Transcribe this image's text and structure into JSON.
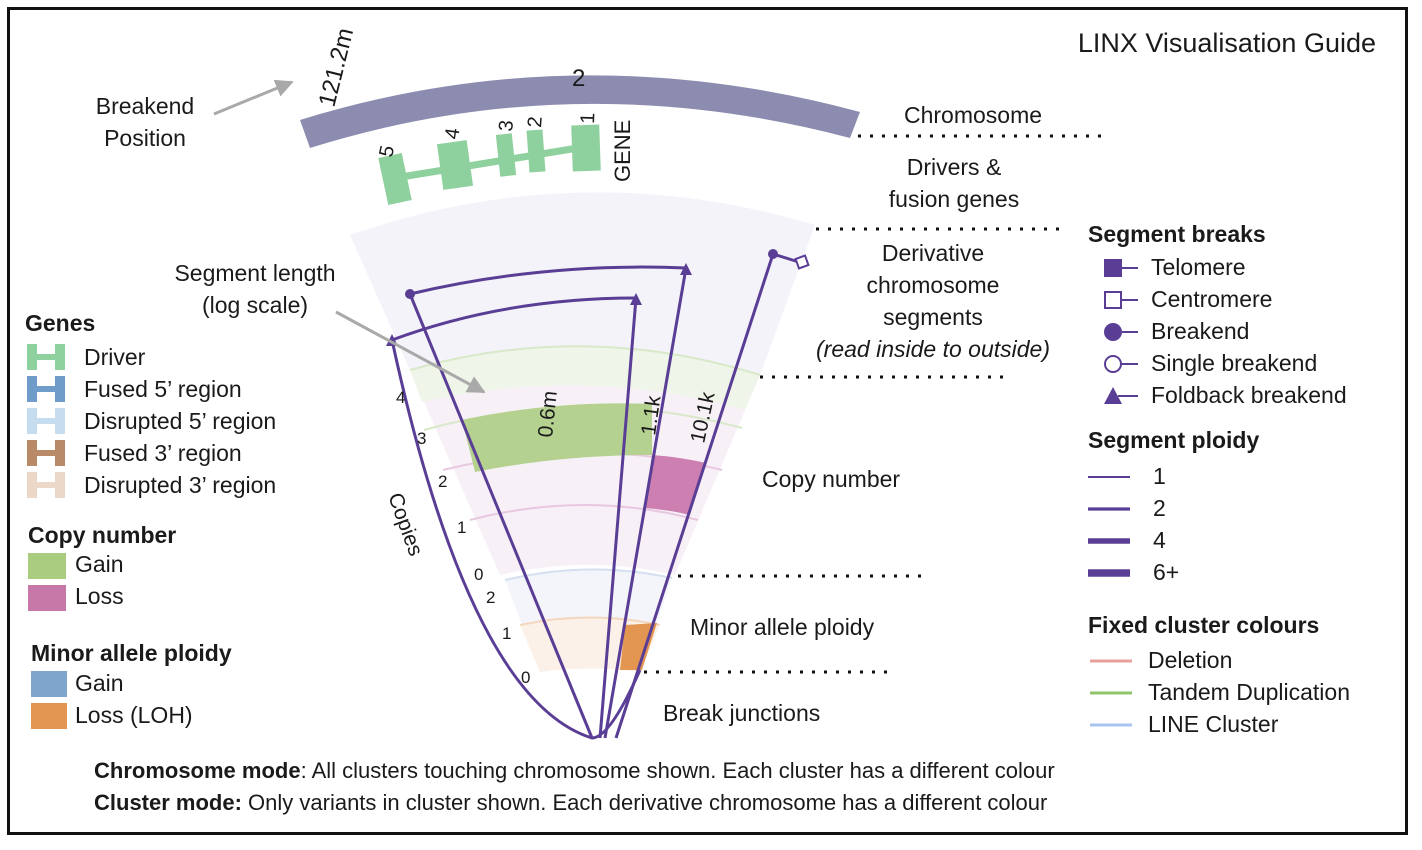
{
  "title": "LINX Visualisation Guide",
  "diagram": {
    "chromosome_number": "2",
    "breakend_position_value": "121.2m",
    "gene_label": "GENE",
    "exon_numbers": [
      "5",
      "4",
      "3",
      "2",
      "1"
    ],
    "segment_length_values": [
      "0.6m",
      "1.1k",
      "10.1k"
    ],
    "copies_axis_label": "Copies",
    "copy_number_ticks": [
      "4",
      "3",
      "2",
      "1",
      "0"
    ],
    "minor_allele_ticks": [
      "2",
      "1",
      "0"
    ]
  },
  "annotations": {
    "breakend_position": [
      "Breakend",
      "Position"
    ],
    "segment_length": [
      "Segment length",
      "(log scale)"
    ],
    "chromosome": "Chromosome",
    "drivers_fusion": [
      "Drivers &",
      "fusion genes"
    ],
    "derivative": [
      "Derivative",
      "chromosome",
      "segments"
    ],
    "derivative_note": "(read inside to outside)",
    "copy_number": "Copy number",
    "minor_allele_ploidy": "Minor allele ploidy",
    "break_junctions": "Break junctions"
  },
  "legend_left": {
    "genes": {
      "header": "Genes",
      "items": [
        {
          "label": "Driver",
          "color": "#8fd19e"
        },
        {
          "label": "Fused 5’ region",
          "color": "#6f9cc8"
        },
        {
          "label": "Disrupted 5’ region",
          "color": "#c6dcef"
        },
        {
          "label": "Fused 3’ region",
          "color": "#b98a68"
        },
        {
          "label": "Disrupted 3’ region",
          "color": "#ecd8c8"
        }
      ]
    },
    "copy_number": {
      "header": "Copy number",
      "items": [
        {
          "label": "Gain",
          "color": "#a9cc7e"
        },
        {
          "label": "Loss",
          "color": "#c878a8"
        }
      ]
    },
    "minor_allele_ploidy": {
      "header": "Minor allele ploidy",
      "items": [
        {
          "label": "Gain",
          "color": "#7ea6cc"
        },
        {
          "label": "Loss (LOH)",
          "color": "#e39552"
        }
      ]
    }
  },
  "legend_right": {
    "segment_breaks": {
      "header": "Segment breaks",
      "items": [
        {
          "label": "Telomere",
          "marker": "filled-square"
        },
        {
          "label": "Centromere",
          "marker": "open-square"
        },
        {
          "label": "Breakend",
          "marker": "filled-circle"
        },
        {
          "label": "Single breakend",
          "marker": "open-circle"
        },
        {
          "label": "Foldback breakend",
          "marker": "filled-triangle"
        }
      ]
    },
    "segment_ploidy": {
      "header": "Segment ploidy",
      "items": [
        {
          "label": "1",
          "value": 1
        },
        {
          "label": "2",
          "value": 2
        },
        {
          "label": "4",
          "value": 4
        },
        {
          "label": "6+",
          "value": 6
        }
      ]
    },
    "fixed_cluster_colours": {
      "header": "Fixed cluster colours",
      "items": [
        {
          "label": "Deletion",
          "color": "#e8a09a"
        },
        {
          "label": "Tandem Duplication",
          "color": "#8fc46a"
        },
        {
          "label": "LINE Cluster",
          "color": "#a8c4f0"
        }
      ]
    }
  },
  "footer": {
    "line1_bold": "Chromosome mode",
    "line1_rest": ": All clusters touching chromosome shown.  Each cluster has a different colour",
    "line2_bold": "Cluster mode:",
    "line2_rest": " Only variants in cluster shown.  Each derivative chromosome has a different colour"
  },
  "colors": {
    "chromosome": "#8c8cb0",
    "segment_line": "#5a3e96",
    "derivative_band": "#f3f3f9"
  }
}
